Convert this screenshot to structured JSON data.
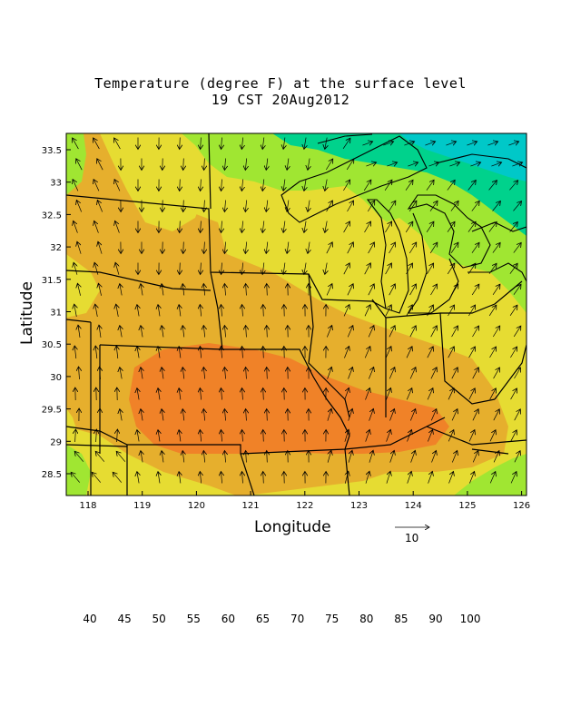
{
  "title": {
    "line1": "Temperature (degree F) at the surface level",
    "line2": "19 CST 20Aug2012"
  },
  "axes": {
    "xlabel": "Longitude",
    "ylabel": "Latitude",
    "xticks": [
      "118",
      "119",
      "120",
      "121",
      "122",
      "123",
      "124",
      "125",
      "126"
    ],
    "yticks": [
      "33.5",
      "33",
      "32.5",
      "32",
      "31.5",
      "31",
      "30.5",
      "30",
      "29.5",
      "29",
      "28.5"
    ]
  },
  "vector_reference": {
    "label": "10"
  },
  "legend": {
    "colors": [
      "#a000c8",
      "#8200dc",
      "#1e3cff",
      "#00a0ff",
      "#00c8c8",
      "#00d28c",
      "#a0e632",
      "#e6dc32",
      "#e6af2d",
      "#f08228",
      "#fa3c3c",
      "#f00082"
    ],
    "labels": [
      "40",
      "45",
      "50",
      "55",
      "60",
      "65",
      "70",
      "75",
      "80",
      "85",
      "90",
      "100"
    ]
  },
  "temperature_bands": {
    "65_70": "#00d28c",
    "70_75": "#a0e632",
    "75_80": "#e6dc32",
    "80_85": "#e6af2d",
    "85_90": "#f08228",
    "60_65": "#00c8c8"
  }
}
